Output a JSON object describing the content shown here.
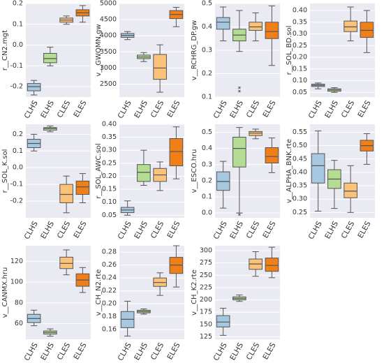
{
  "chart_data": [
    {
      "type": "box",
      "ylabel": "r__CN2.mgt",
      "categories": [
        "CLHS",
        "ELHS",
        "CLES",
        "ELES"
      ],
      "colors": [
        "#a6c8e0",
        "#b5dc93",
        "#fbc27a",
        "#f07f18"
      ],
      "ylim": [
        -0.25,
        0.2
      ],
      "yticks": [
        -0.2,
        -0.1,
        {
          "value": 0,
          "label": "0.0"
        },
        0.1,
        0.2
      ],
      "grid": true,
      "boxes": [
        {
          "min": -0.24,
          "q1": -0.22,
          "median": -0.2,
          "q3": -0.185,
          "max": -0.17
        },
        {
          "min": -0.1,
          "q1": -0.085,
          "median": -0.065,
          "q3": -0.04,
          "max": -0.01
        },
        {
          "min": 0.1,
          "q1": 0.11,
          "median": 0.12,
          "q3": 0.13,
          "max": 0.14
        },
        {
          "min": 0.11,
          "q1": 0.14,
          "median": 0.155,
          "q3": 0.17,
          "max": 0.19
        }
      ]
    },
    {
      "type": "box",
      "ylabel": "v__GWQMN.gw",
      "categories": [
        "CLHS",
        "ELHS",
        "CLES",
        "ELES"
      ],
      "colors": [
        "#a6c8e0",
        "#b5dc93",
        "#fbc27a",
        "#f07f18"
      ],
      "ylim": [
        2100,
        5000
      ],
      "yticks": [
        2500,
        3000,
        3500,
        4000,
        4500,
        5000
      ],
      "grid": true,
      "boxes": [
        {
          "min": 3880,
          "q1": 3950,
          "median": 4010,
          "q3": 4070,
          "max": 4130
        },
        {
          "min": 3200,
          "q1": 3290,
          "median": 3340,
          "q3": 3400,
          "max": 3480
        },
        {
          "min": 2250,
          "q1": 2650,
          "median": 3000,
          "q3": 3420,
          "max": 3720
        },
        {
          "min": 4280,
          "q1": 4530,
          "median": 4660,
          "q3": 4780,
          "max": 4880
        }
      ]
    },
    {
      "type": "box",
      "ylabel": "v__RCHRG_DP.gw",
      "categories": [
        "CLHS",
        "ELHS",
        "CLES",
        "ELES"
      ],
      "colors": [
        "#a6c8e0",
        "#b5dc93",
        "#fbc27a",
        "#f07f18"
      ],
      "ylim": [
        0.1,
        0.5
      ],
      "yticks": [
        0.1,
        0.2,
        0.3,
        0.4,
        0.5
      ],
      "grid": true,
      "boxes": [
        {
          "min": 0.34,
          "q1": 0.39,
          "median": 0.42,
          "q3": 0.44,
          "max": 0.485
        },
        {
          "min": 0.295,
          "q1": 0.34,
          "median": 0.365,
          "q3": 0.39,
          "max": 0.47,
          "outliers": [
            0.125,
            0.14
          ]
        },
        {
          "min": 0.34,
          "q1": 0.385,
          "median": 0.4,
          "q3": 0.42,
          "max": 0.46
        },
        {
          "min": 0.235,
          "q1": 0.35,
          "median": 0.38,
          "q3": 0.42,
          "max": 0.49
        }
      ]
    },
    {
      "type": "box",
      "ylabel": "r__SOL_BD.sol",
      "categories": [
        "CLHS",
        "ELHS",
        "CLES",
        "ELES"
      ],
      "colors": [
        "#a6c8e0",
        "#b5dc93",
        "#fbc27a",
        "#f07f18"
      ],
      "ylim": [
        0.03,
        0.43
      ],
      "yticks": [
        0.05,
        {
          "value": 0.1,
          "label": "0.10"
        },
        0.15,
        {
          "value": 0.2,
          "label": "0.20"
        },
        0.25,
        {
          "value": 0.3,
          "label": "0.30"
        },
        0.35,
        {
          "value": 0.4,
          "label": "0.40"
        }
      ],
      "grid": true,
      "boxes": [
        {
          "min": 0.065,
          "q1": 0.075,
          "median": 0.08,
          "q3": 0.085,
          "max": 0.09
        },
        {
          "min": 0.05,
          "q1": 0.055,
          "median": 0.06,
          "q3": 0.065,
          "max": 0.07
        },
        {
          "min": 0.27,
          "q1": 0.31,
          "median": 0.33,
          "q3": 0.355,
          "max": 0.415
        },
        {
          "min": 0.22,
          "q1": 0.285,
          "median": 0.315,
          "q3": 0.35,
          "max": 0.4
        }
      ]
    },
    {
      "type": "box",
      "ylabel": "r__SOL_K.sol",
      "categories": [
        "CLHS",
        "ELHS",
        "CLES",
        "ELES"
      ],
      "colors": [
        "#a6c8e0",
        "#b5dc93",
        "#fbc27a",
        "#f07f18"
      ],
      "ylim": [
        -0.3,
        0.26
      ],
      "yticks": [
        -0.2,
        -0.1,
        {
          "value": 0,
          "label": "0.0"
        },
        0.1,
        0.2
      ],
      "grid": true,
      "boxes": [
        {
          "min": 0.1,
          "q1": 0.12,
          "median": 0.145,
          "q3": 0.17,
          "max": 0.2
        },
        {
          "min": 0.215,
          "q1": 0.225,
          "median": 0.235,
          "q3": 0.24,
          "max": 0.25
        },
        {
          "min": -0.27,
          "q1": -0.21,
          "median": -0.16,
          "q3": -0.1,
          "max": -0.05
        },
        {
          "min": -0.21,
          "q1": -0.16,
          "median": -0.115,
          "q3": -0.08,
          "max": -0.035
        }
      ]
    },
    {
      "type": "box",
      "ylabel": "r__SOL_AWC.sol",
      "categories": [
        "CLHS",
        "ELHS",
        "CLES",
        "ELES"
      ],
      "colors": [
        "#a6c8e0",
        "#b5dc93",
        "#fbc27a",
        "#f07f18"
      ],
      "ylim": [
        0.04,
        0.4
      ],
      "yticks": [
        0.05,
        {
          "value": 0.1,
          "label": "0.10"
        },
        0.15,
        {
          "value": 0.2,
          "label": "0.20"
        },
        0.25,
        {
          "value": 0.3,
          "label": "0.30"
        },
        0.35,
        {
          "value": 0.4,
          "label": "0.40"
        }
      ],
      "grid": true,
      "boxes": [
        {
          "min": 0.05,
          "q1": 0.06,
          "median": 0.07,
          "q3": 0.08,
          "max": 0.105
        },
        {
          "min": 0.165,
          "q1": 0.18,
          "median": 0.215,
          "q3": 0.245,
          "max": 0.3
        },
        {
          "min": 0.145,
          "q1": 0.18,
          "median": 0.205,
          "q3": 0.23,
          "max": 0.255
        },
        {
          "min": 0.19,
          "q1": 0.24,
          "median": 0.295,
          "q3": 0.345,
          "max": 0.39
        }
      ]
    },
    {
      "type": "box",
      "ylabel": "v__ESCO.hru",
      "categories": [
        "CLHS",
        "ELHS",
        "CLES",
        "ELES"
      ],
      "colors": [
        "#a6c8e0",
        "#b5dc93",
        "#fbc27a",
        "#f07f18"
      ],
      "ylim": [
        -0.03,
        0.55
      ],
      "yticks": [
        {
          "value": 0,
          "label": "0.0"
        },
        0.1,
        0.2,
        0.3,
        0.4,
        0.5
      ],
      "grid": true,
      "boxes": [
        {
          "min": 0.03,
          "q1": 0.14,
          "median": 0.195,
          "q3": 0.255,
          "max": 0.32
        },
        {
          "min": 0,
          "q1": 0.285,
          "median": 0.4,
          "q3": 0.47,
          "max": 0.53,
          "outliers": [
            -0.01
          ]
        },
        {
          "min": 0.46,
          "q1": 0.48,
          "median": 0.495,
          "q3": 0.505,
          "max": 0.52
        },
        {
          "min": 0.25,
          "q1": 0.31,
          "median": 0.35,
          "q3": 0.405,
          "max": 0.465
        }
      ]
    },
    {
      "type": "box",
      "ylabel": "v__ALPHA_BNK.rte",
      "categories": [
        "CLHS",
        "ELHS",
        "CLES",
        "ELES"
      ],
      "colors": [
        "#a6c8e0",
        "#b5dc93",
        "#fbc27a",
        "#f07f18"
      ],
      "ylim": [
        0.23,
        0.58
      ],
      "yticks": [
        0.25,
        {
          "value": 0.3,
          "label": "0.30"
        },
        0.35,
        {
          "value": 0.4,
          "label": "0.40"
        },
        0.45,
        {
          "value": 0.5,
          "label": "0.50"
        },
        0.55
      ],
      "grid": true,
      "boxes": [
        {
          "min": 0.255,
          "q1": 0.36,
          "median": 0.425,
          "q3": 0.47,
          "max": 0.555
        },
        {
          "min": 0.265,
          "q1": 0.34,
          "median": 0.375,
          "q3": 0.41,
          "max": 0.445
        },
        {
          "min": 0.25,
          "q1": 0.305,
          "median": 0.33,
          "q3": 0.36,
          "max": 0.425
        },
        {
          "min": 0.43,
          "q1": 0.48,
          "median": 0.5,
          "q3": 0.52,
          "max": 0.545
        }
      ]
    },
    {
      "type": "box",
      "ylabel": "v__CANMX.hru",
      "categories": [
        "CLHS",
        "ELHS",
        "CLES",
        "ELES"
      ],
      "colors": [
        "#a6c8e0",
        "#b5dc93",
        "#fbc27a",
        "#f07f18"
      ],
      "ylim": [
        45,
        135
      ],
      "yticks": [
        60,
        80,
        100,
        120
      ],
      "grid": true,
      "boxes": [
        {
          "min": 58,
          "q1": 61,
          "median": 65,
          "q3": 69,
          "max": 73
        },
        {
          "min": 48,
          "q1": 50,
          "median": 51.5,
          "q3": 53,
          "max": 55
        },
        {
          "min": 107,
          "q1": 113,
          "median": 118,
          "q3": 124,
          "max": 131
        },
        {
          "min": 90,
          "q1": 96,
          "median": 102,
          "q3": 108,
          "max": 114
        }
      ]
    },
    {
      "type": "box",
      "ylabel": "v__CH_N2.rte",
      "categories": [
        "CLHS",
        "ELHS",
        "CLES",
        "ELES"
      ],
      "colors": [
        "#a6c8e0",
        "#b5dc93",
        "#fbc27a",
        "#f07f18"
      ],
      "ylim": [
        0.145,
        0.29
      ],
      "yticks": [
        0.16,
        0.18,
        {
          "value": 0.2,
          "label": "0.20"
        },
        0.22,
        0.24,
        0.26,
        0.28
      ],
      "grid": true,
      "boxes": [
        {
          "min": 0.15,
          "q1": 0.163,
          "median": 0.176,
          "q3": 0.188,
          "max": 0.204
        },
        {
          "min": 0.184,
          "q1": 0.186,
          "median": 0.188,
          "q3": 0.19,
          "max": 0.192
        },
        {
          "min": 0.213,
          "q1": 0.227,
          "median": 0.233,
          "q3": 0.24,
          "max": 0.248
        },
        {
          "min": 0.226,
          "q1": 0.247,
          "median": 0.26,
          "q3": 0.272,
          "max": 0.29
        }
      ]
    },
    {
      "type": "box",
      "ylabel": "v__CH_K2.rte",
      "categories": [
        "CLHS",
        "ELHS",
        "CLES",
        "ELES"
      ],
      "colors": [
        "#a6c8e0",
        "#b5dc93",
        "#fbc27a",
        "#f07f18"
      ],
      "ylim": [
        120,
        310
      ],
      "yticks": [
        125,
        150,
        175,
        200,
        225,
        250,
        275,
        300
      ],
      "grid": true,
      "boxes": [
        {
          "min": 128,
          "q1": 145,
          "median": 155,
          "q3": 168,
          "max": 183
        },
        {
          "min": 197,
          "q1": 200,
          "median": 203,
          "q3": 206,
          "max": 210
        },
        {
          "min": 248,
          "q1": 262,
          "median": 273,
          "q3": 283,
          "max": 298
        },
        {
          "min": 245,
          "q1": 258,
          "median": 270,
          "q3": 285,
          "max": 307
        }
      ]
    }
  ]
}
